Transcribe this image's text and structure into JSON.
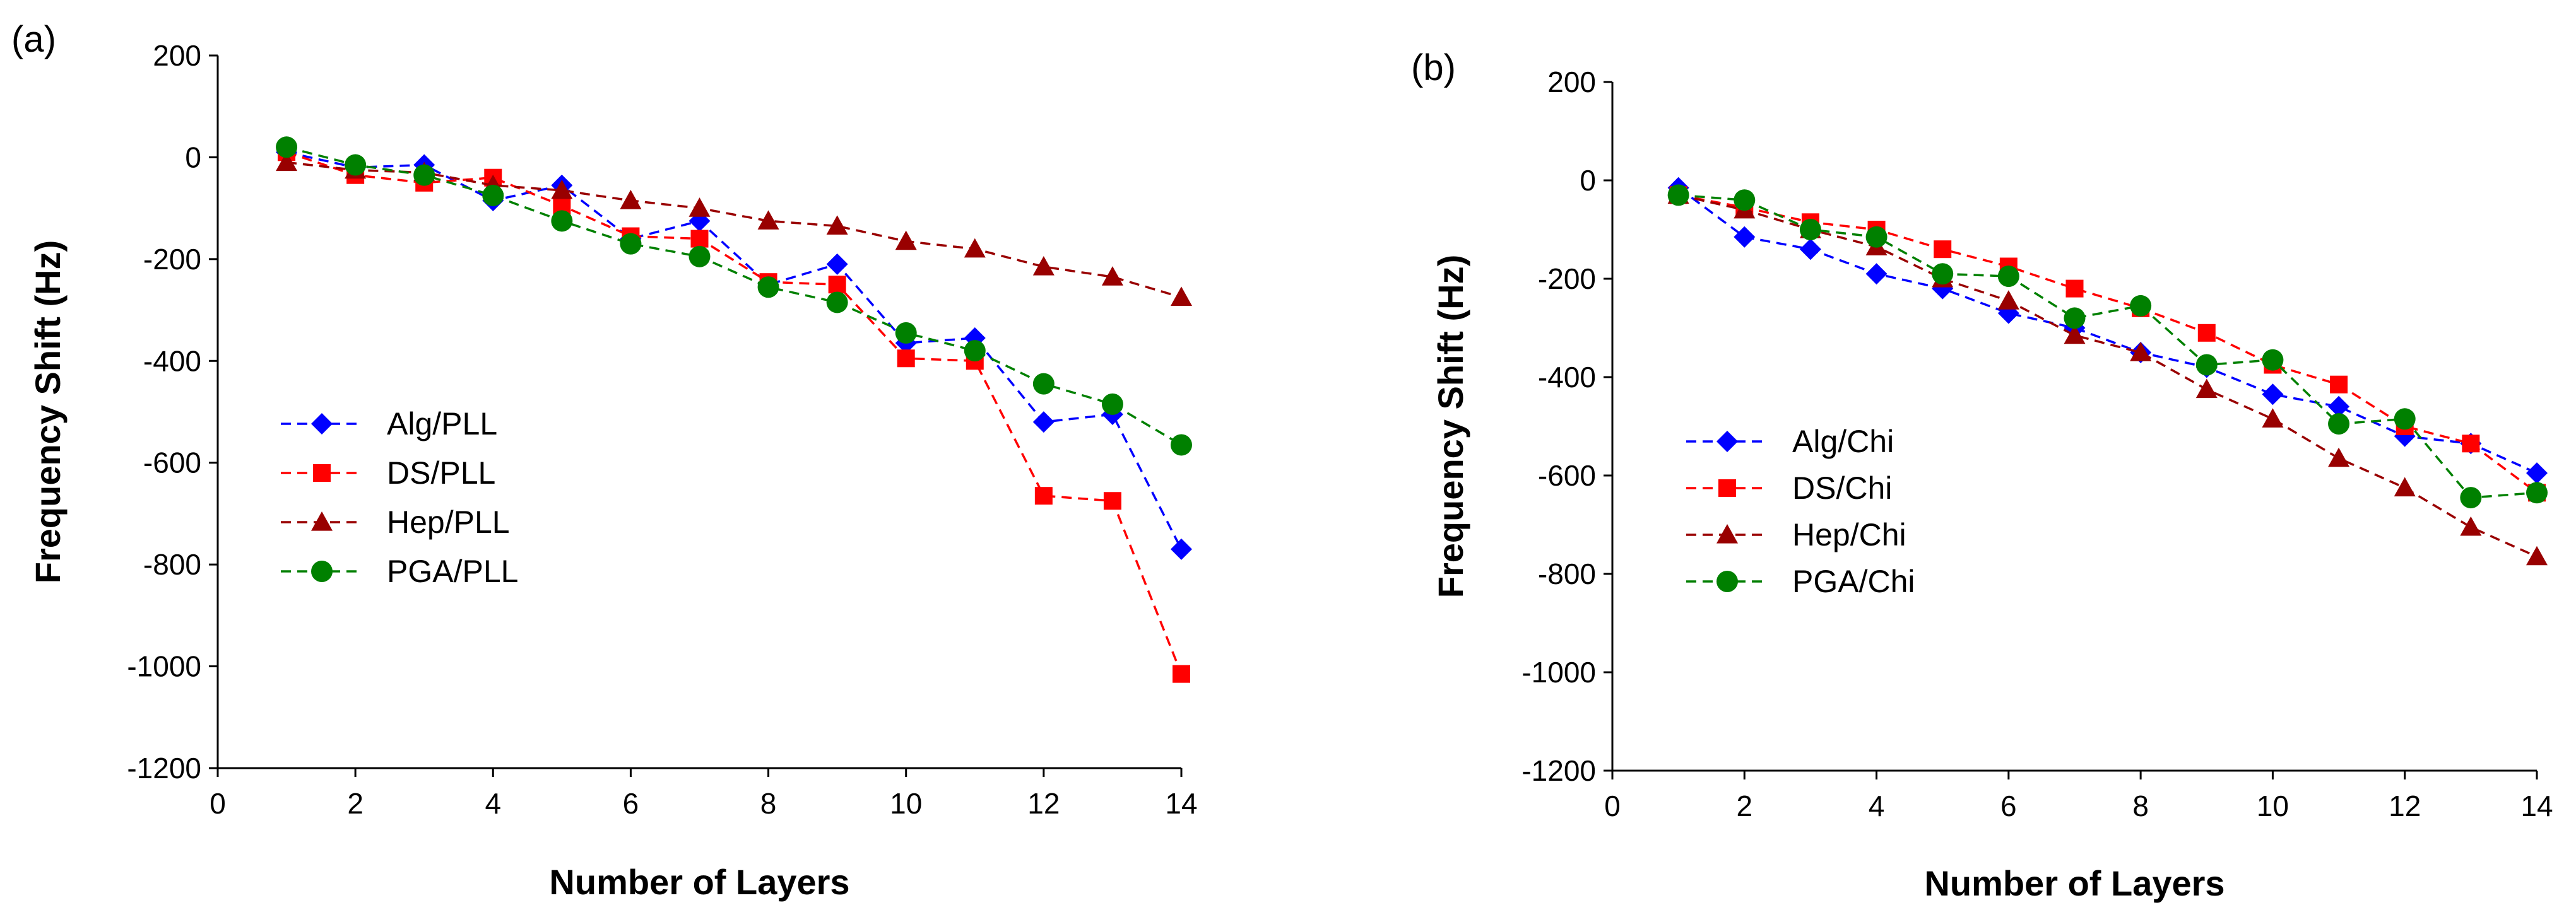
{
  "chart_data": [
    {
      "type": "line",
      "panel_label": "(a)",
      "xlabel": "Number of Layers",
      "ylabel": "Frequency Shift (Hz)",
      "xlim": [
        0,
        14
      ],
      "ylim": [
        -1200,
        200
      ],
      "xticks": [
        0,
        2,
        4,
        6,
        8,
        10,
        12,
        14
      ],
      "yticks": [
        200,
        0,
        -200,
        -400,
        -600,
        -800,
        -1000,
        -1200
      ],
      "grid": false,
      "legend": "center-left",
      "x": [
        1,
        2,
        3,
        4,
        5,
        6,
        7,
        8,
        9,
        10,
        11,
        12,
        13,
        14
      ],
      "series": [
        {
          "name": "Alg/PLL",
          "color": "#0000FF",
          "marker": "diamond",
          "values": [
            10,
            -20,
            -15,
            -85,
            -55,
            -160,
            -125,
            -250,
            -210,
            -365,
            -355,
            -520,
            -505,
            -770
          ]
        },
        {
          "name": "DS/PLL",
          "color": "#FF0000",
          "marker": "square",
          "values": [
            10,
            -35,
            -50,
            -40,
            -95,
            -155,
            -160,
            -245,
            -250,
            -395,
            -400,
            -665,
            -675,
            -1015
          ]
        },
        {
          "name": "Hep/PLL",
          "color": "#990000",
          "marker": "triangle",
          "values": [
            -10,
            -25,
            -30,
            -55,
            -65,
            -85,
            -100,
            -125,
            -135,
            -165,
            -180,
            -215,
            -235,
            -275
          ]
        },
        {
          "name": "PGA/PLL",
          "color": "#008000",
          "marker": "circle",
          "values": [
            20,
            -15,
            -35,
            -75,
            -125,
            -170,
            -195,
            -255,
            -285,
            -345,
            -380,
            -445,
            -485,
            -565
          ]
        }
      ]
    },
    {
      "type": "line",
      "panel_label": "(b)",
      "xlabel": "Number of Layers",
      "ylabel": "Frequency Shift (Hz)",
      "xlim": [
        0,
        14
      ],
      "ylim": [
        -1200,
        200
      ],
      "xticks": [
        0,
        2,
        4,
        6,
        8,
        10,
        12,
        14
      ],
      "yticks": [
        200,
        0,
        -200,
        -400,
        -600,
        -800,
        -1000,
        -1200
      ],
      "grid": false,
      "legend": "bottom-left",
      "x": [
        1,
        2,
        3,
        4,
        5,
        6,
        7,
        8,
        9,
        10,
        11,
        12,
        13,
        14
      ],
      "series": [
        {
          "name": "Alg/Chi",
          "color": "#0000FF",
          "marker": "diamond",
          "values": [
            -15,
            -115,
            -140,
            -190,
            -220,
            -270,
            -300,
            -350,
            -380,
            -435,
            -460,
            -520,
            -535,
            -595
          ]
        },
        {
          "name": "DS/Chi",
          "color": "#FF0000",
          "marker": "square",
          "values": [
            -30,
            -55,
            -85,
            -100,
            -140,
            -175,
            -220,
            -260,
            -310,
            -375,
            -415,
            -500,
            -535,
            -635
          ]
        },
        {
          "name": "Hep/Chi",
          "color": "#990000",
          "marker": "triangle",
          "values": [
            -30,
            -60,
            -100,
            -135,
            -200,
            -245,
            -315,
            -350,
            -425,
            -485,
            -565,
            -625,
            -705,
            -765
          ]
        },
        {
          "name": "PGA/Chi",
          "color": "#008000",
          "marker": "circle",
          "values": [
            -30,
            -40,
            -100,
            -115,
            -190,
            -195,
            -280,
            -255,
            -375,
            -365,
            -495,
            -485,
            -645,
            -635
          ]
        }
      ]
    }
  ]
}
